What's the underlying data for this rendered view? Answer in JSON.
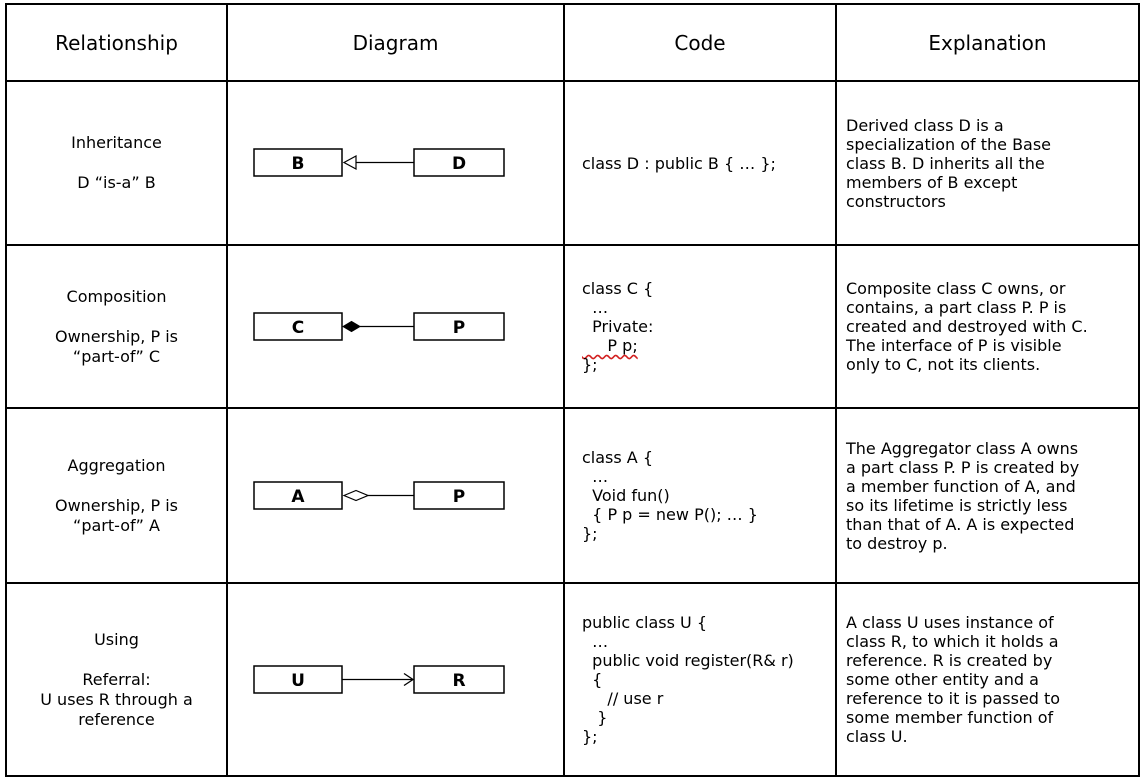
{
  "headers": [
    "Relationship",
    "Diagram",
    "Code",
    "Explanation"
  ],
  "rows": [
    {
      "name": "Inheritance",
      "detail": [
        "D “is-a” B"
      ],
      "diagram": {
        "left": "B",
        "right": "D",
        "connector": "hollow-triangle-arrow"
      },
      "code": [
        "class D : public B { … };"
      ],
      "explanation": [
        "Derived class D is a",
        "specialization of the Base",
        "class B.  D inherits all the",
        "members of B except",
        "constructors"
      ]
    },
    {
      "name": "Composition",
      "detail": [
        "Ownership, P is",
        "“part-of” C"
      ],
      "diagram": {
        "left": "C",
        "right": "P",
        "connector": "filled-diamond"
      },
      "code": [
        "class C {",
        "  …",
        "  Private:",
        "     P p;",
        "};"
      ],
      "explanation": [
        "Composite class C owns, or",
        "contains, a part class P.  P is",
        "created and destroyed with C.",
        "The interface of P is visible",
        "only to C, not its clients."
      ]
    },
    {
      "name": "Aggregation",
      "detail": [
        "Ownership, P is",
        "“part-of” A"
      ],
      "diagram": {
        "left": "A",
        "right": "P",
        "connector": "hollow-diamond"
      },
      "code": [
        "class A {",
        "  …",
        "  Void fun()",
        "  { P p = new P(); … }",
        "};"
      ],
      "explanation": [
        "The Aggregator class A owns",
        "a part class P.  P is created by",
        "a member function of A, and",
        "so its lifetime is strictly less",
        "than that of A.  A is expected",
        "to destroy p."
      ]
    },
    {
      "name": "Using",
      "detail": [
        "Referral:",
        "U uses R through a",
        "reference"
      ],
      "diagram": {
        "left": "U",
        "right": "R",
        "connector": "open-arrow"
      },
      "code": [
        "public class U {",
        "  …",
        "  public void register(R& r)",
        "  {",
        "     // use r",
        "   }",
        "};"
      ],
      "explanation": [
        "A class U uses instance of",
        "class R, to which it holds a",
        "reference.  R is created by",
        "some other entity and a",
        "reference to it is passed to",
        "some member function of",
        "class U."
      ]
    }
  ]
}
